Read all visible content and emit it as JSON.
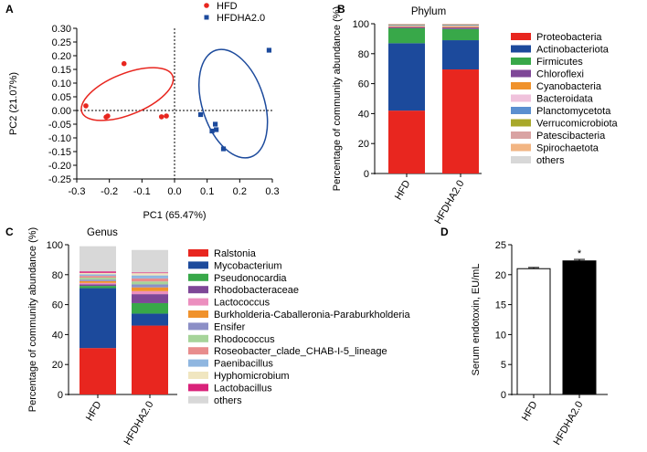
{
  "panels": {
    "a": {
      "letter": "A"
    },
    "b": {
      "letter": "B"
    },
    "c": {
      "letter": "C"
    },
    "d": {
      "letter": "D"
    }
  },
  "chart_data": [
    {
      "id": "A",
      "type": "scatter",
      "xlabel": "PC1 (65.47%)",
      "ylabel": "PC2  (21.07%)",
      "xlim": [
        -0.3,
        0.3
      ],
      "ylim": [
        -0.25,
        0.3
      ],
      "xticks": [
        "-0.3",
        "-0.2",
        "-0.1",
        "0.0",
        "0.1",
        "0.2",
        "0.3"
      ],
      "yticks": [
        "0.30",
        "0.25",
        "0.20",
        "0.15",
        "0.10",
        "0.05",
        "0.00",
        "-0.05",
        "-0.10",
        "-0.15",
        "-0.20",
        "-0.25"
      ],
      "legend_position": "top",
      "series": [
        {
          "name": "HFD",
          "color": "#e8261f",
          "marker": "circle",
          "points": [
            [
              -0.272,
              0.017
            ],
            [
              -0.21,
              -0.024
            ],
            [
              -0.205,
              -0.02
            ],
            [
              -0.155,
              0.171
            ],
            [
              -0.04,
              -0.023
            ],
            [
              -0.025,
              -0.02
            ]
          ],
          "ellipse": {
            "cx": -0.145,
            "cy": 0.06,
            "rx": 0.15,
            "ry": 0.075,
            "rotation_deg": 22
          }
        },
        {
          "name": "HFDHA2.0",
          "color": "#1c4a9c",
          "marker": "square",
          "points": [
            [
              0.08,
              -0.015
            ],
            [
              0.115,
              -0.075
            ],
            [
              0.125,
              -0.05
            ],
            [
              0.128,
              -0.07
            ],
            [
              0.15,
              -0.14
            ],
            [
              0.29,
              0.22
            ]
          ],
          "ellipse": {
            "cx": 0.18,
            "cy": 0.025,
            "rx": 0.095,
            "ry": 0.205,
            "rotation_deg": 18
          }
        }
      ]
    },
    {
      "id": "B",
      "type": "bar",
      "stacked": true,
      "title": "Phylum",
      "ylabel": "Percentage of  community abundance (%)",
      "ylim": [
        0,
        100
      ],
      "yticks": [
        "0",
        "20",
        "40",
        "60",
        "80",
        "100"
      ],
      "categories": [
        "HFD",
        "HFDHA2.0"
      ],
      "series": [
        {
          "name": "Proteobacteria",
          "color": "#e8261f",
          "values": [
            42,
            69.5
          ]
        },
        {
          "name": "Actinobacteriota",
          "color": "#1c4a9c",
          "values": [
            45,
            19.5
          ]
        },
        {
          "name": "Firmicutes",
          "color": "#38a849",
          "values": [
            10,
            7.5
          ]
        },
        {
          "name": "Chloroflexi",
          "color": "#7e4797",
          "values": [
            0.8,
            1
          ]
        },
        {
          "name": "Cyanobacteria",
          "color": "#f0922c",
          "values": [
            0.5,
            0.6
          ]
        },
        {
          "name": "Bacteroidata",
          "color": "#f0c2dc",
          "values": [
            0.4,
            0.6
          ]
        },
        {
          "name": "Planctomycetota",
          "color": "#5b8fd0",
          "values": [
            0.4,
            0.4
          ]
        },
        {
          "name": "Verrucomicrobiota",
          "color": "#a8a82a",
          "values": [
            0.3,
            0.3
          ]
        },
        {
          "name": "Patescibacteria",
          "color": "#d9a3a3",
          "values": [
            0.3,
            0.3
          ]
        },
        {
          "name": "Spirochaetota",
          "color": "#f2b583",
          "values": [
            0.2,
            0.2
          ]
        },
        {
          "name": "others",
          "color": "#d8d8d8",
          "values": [
            0.1,
            0.1
          ]
        }
      ]
    },
    {
      "id": "C",
      "type": "bar",
      "stacked": true,
      "title": "Genus",
      "ylabel": "Percentage of  community abundance (%)",
      "ylim": [
        0,
        100
      ],
      "yticks": [
        "0",
        "20",
        "40",
        "60",
        "80",
        "100"
      ],
      "categories": [
        "HFD",
        "HFDHA2.0"
      ],
      "series": [
        {
          "name": "Ralstonia",
          "color": "#e8261f",
          "values": [
            31,
            46
          ]
        },
        {
          "name": "Mycobacterium",
          "color": "#1c4a9c",
          "values": [
            40,
            8
          ]
        },
        {
          "name": "Pseudonocardia",
          "color": "#38a849",
          "values": [
            1.5,
            7
          ]
        },
        {
          "name": "Rhodobacteraceae",
          "color": "#7e4797",
          "values": [
            1,
            6
          ]
        },
        {
          "name": "Lactococcus",
          "color": "#ec8fbf",
          "values": [
            1,
            2
          ]
        },
        {
          "name": "Burkholderia-Caballeronia-Paraburkholderia",
          "color": "#f0922c",
          "values": [
            1.2,
            2.5
          ]
        },
        {
          "name": "Ensifer",
          "color": "#8c8fc6",
          "values": [
            1,
            2
          ]
        },
        {
          "name": "Rhodococcus",
          "color": "#a6d49a",
          "values": [
            1.3,
            2
          ]
        },
        {
          "name": "Roseobacter_clade_CHAB-I-5_lineage",
          "color": "#e88d8d",
          "values": [
            1.2,
            2
          ]
        },
        {
          "name": "Paenibacillus",
          "color": "#8fb6e0",
          "values": [
            1,
            2
          ]
        },
        {
          "name": "Hyphomicrobium",
          "color": "#f0e6c0",
          "values": [
            1,
            1.5
          ]
        },
        {
          "name": "Lactobacillus",
          "color": "#d9227a",
          "values": [
            1,
            0.5
          ]
        },
        {
          "name": "others",
          "color": "#d8d8d8",
          "values": [
            16.8,
            15
          ]
        }
      ]
    },
    {
      "id": "D",
      "type": "bar",
      "ylabel": "Serum endotoxin, EU/mL",
      "ylim": [
        0,
        25
      ],
      "yticks": [
        "0",
        "5",
        "10",
        "15",
        "20",
        "25"
      ],
      "categories": [
        "HFD",
        "HFDHA2.0"
      ],
      "values": [
        21.0,
        22.3
      ],
      "errors": [
        0.2,
        0.25
      ],
      "fills": [
        "#ffffff",
        "#000000"
      ],
      "annotations": [
        "",
        "*"
      ]
    }
  ]
}
